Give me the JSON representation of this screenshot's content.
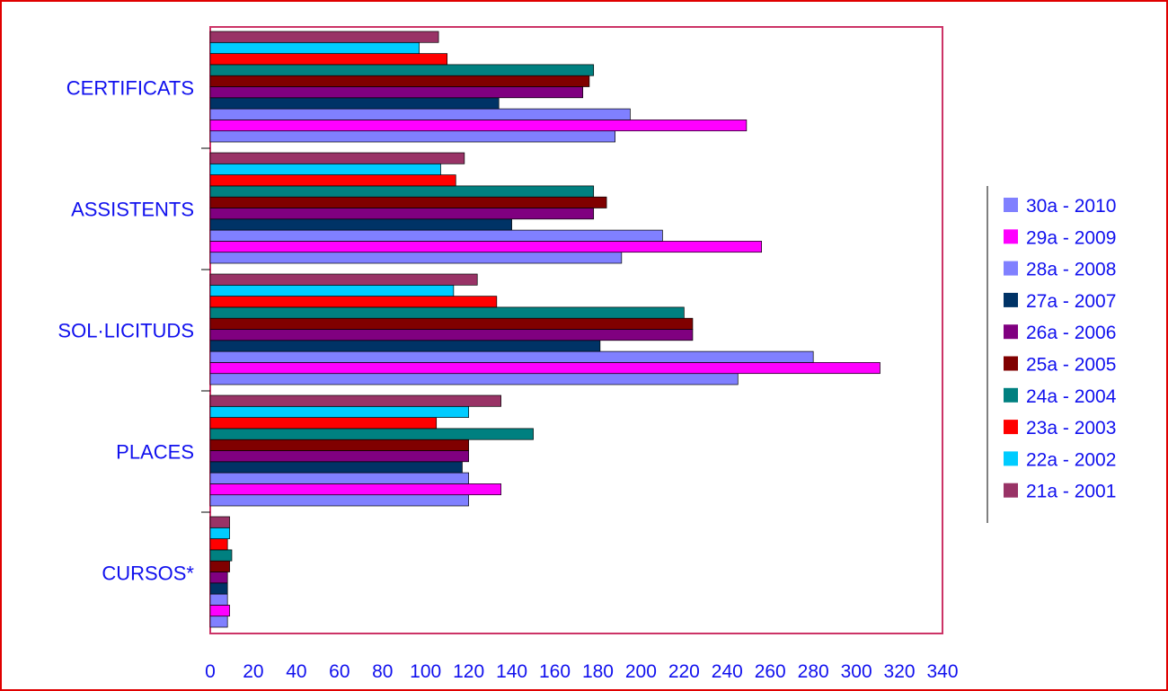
{
  "chart_data": {
    "type": "bar",
    "orientation": "horizontal",
    "grid": false,
    "legend_position": "right",
    "xlim": [
      0,
      340
    ],
    "xticks": [
      0,
      20,
      40,
      60,
      80,
      100,
      120,
      140,
      160,
      180,
      200,
      220,
      240,
      260,
      280,
      300,
      320,
      340
    ],
    "categories": [
      "CERTIFICATS",
      "ASSISTENTS",
      "SOL·LICITUDS",
      "PLACES",
      "CURSOS*"
    ],
    "series": [
      {
        "name": "30a - 2010",
        "color": "#8080ff",
        "values": [
          188,
          191,
          245,
          120,
          8
        ]
      },
      {
        "name": "29a - 2009",
        "color": "#ff00ff",
        "values": [
          249,
          256,
          311,
          135,
          9
        ]
      },
      {
        "name": "28a - 2008",
        "color": "#8080ff",
        "values": [
          195,
          210,
          280,
          120,
          8
        ]
      },
      {
        "name": "27a - 2007",
        "color": "#003366",
        "values": [
          134,
          140,
          181,
          117,
          8
        ]
      },
      {
        "name": "26a - 2006",
        "color": "#800080",
        "values": [
          173,
          178,
          224,
          120,
          8
        ]
      },
      {
        "name": "25a - 2005",
        "color": "#800000",
        "values": [
          176,
          184,
          224,
          120,
          9
        ]
      },
      {
        "name": "24a - 2004",
        "color": "#008080",
        "values": [
          178,
          178,
          220,
          150,
          10
        ]
      },
      {
        "name": "23a - 2003",
        "color": "#ff0000",
        "values": [
          110,
          114,
          133,
          105,
          8
        ]
      },
      {
        "name": "22a - 2002",
        "color": "#00ccff",
        "values": [
          97,
          107,
          113,
          120,
          9
        ]
      },
      {
        "name": "21a - 2001",
        "color": "#993366",
        "values": [
          106,
          118,
          124,
          135,
          9
        ]
      }
    ]
  }
}
